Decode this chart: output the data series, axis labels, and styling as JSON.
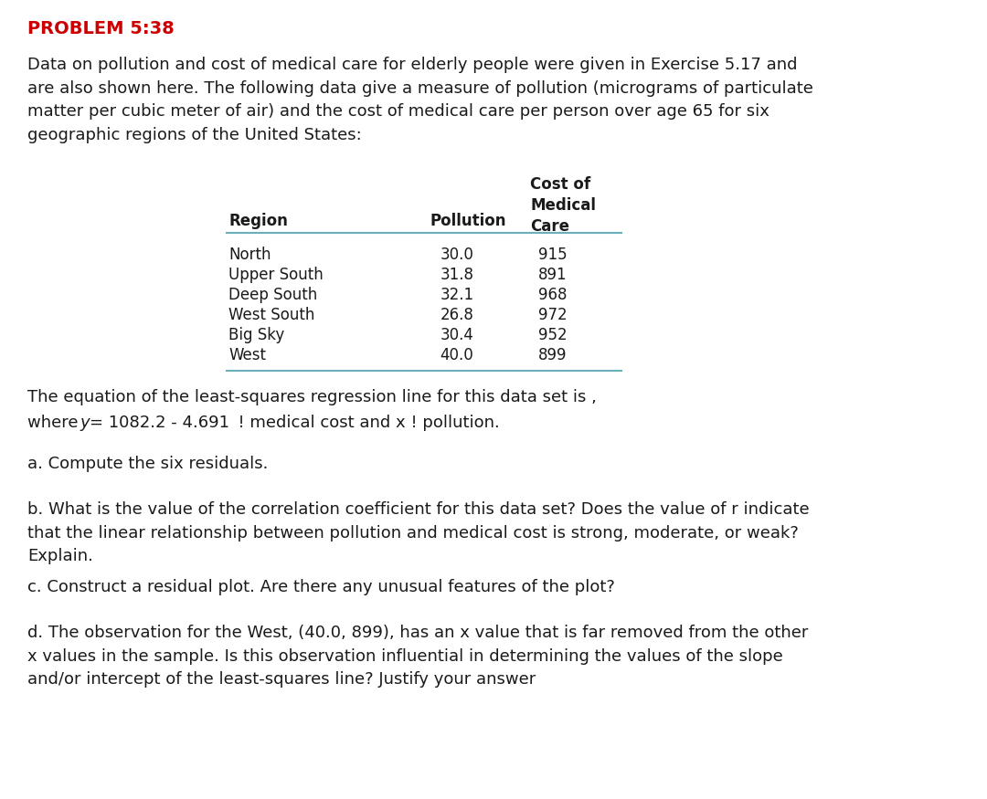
{
  "title": "PROBLEM 5:38",
  "title_color": "#cc0000",
  "bg_color": "#ffffff",
  "intro_text": "Data on pollution and cost of medical care for elderly people were given in Exercise 5.17 and\nare also shown here. The following data give a measure of pollution (micrograms of particulate\nmatter per cubic meter of air) and the cost of medical care per person over age 65 for six\ngeographic regions of the United States:",
  "table_data": [
    [
      "North",
      "30.0",
      "915"
    ],
    [
      "Upper South",
      "31.8",
      "891"
    ],
    [
      "Deep South",
      "32.1",
      "968"
    ],
    [
      "West South",
      "26.8",
      "972"
    ],
    [
      "Big Sky",
      "30.4",
      "952"
    ],
    [
      "West",
      "40.0",
      "899"
    ]
  ],
  "regression_line1": "The equation of the least-squares regression line for this data set is ,",
  "part_a": "a. Compute the six residuals.",
  "part_b": "b. What is the value of the correlation coefficient for this data set? Does the value of r indicate\nthat the linear relationship between pollution and medical cost is strong, moderate, or weak?\nExplain.",
  "part_c": "c. Construct a residual plot. Are there any unusual features of the plot?",
  "part_d": "d. The observation for the West, (40.0, 899), has an x value that is far removed from the other\nx values in the sample. Is this observation influential in determining the values of the slope\nand/or intercept of the least-squares line? Justify your answer",
  "table_line_color": "#6ab0b8",
  "text_color": "#1a1a1a",
  "font_size_title": 14,
  "font_size_body": 13,
  "font_size_table": 12
}
